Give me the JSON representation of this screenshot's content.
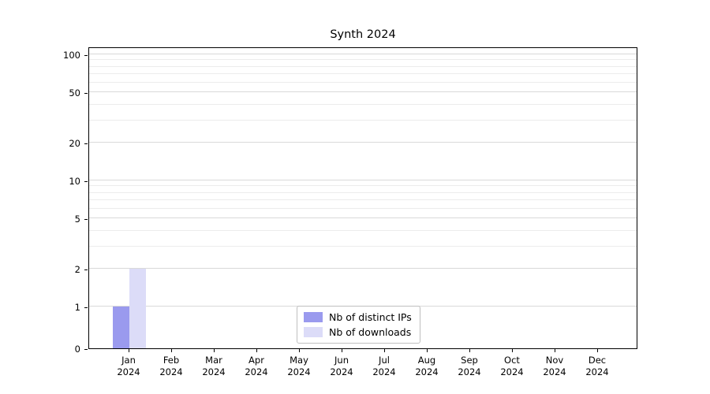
{
  "chart_data": {
    "type": "bar",
    "title": "Synth 2024",
    "yscale": "symlog",
    "grid": true,
    "legend_position": "lower center",
    "ylim": [
      0,
      120
    ],
    "yticks": [
      0,
      1,
      2,
      5,
      10,
      20,
      50,
      100
    ],
    "yticks_minor": [
      3,
      4,
      6,
      7,
      8,
      9,
      30,
      40,
      60,
      70,
      80,
      90
    ],
    "categories": [
      "Jan\n2024",
      "Feb\n2024",
      "Mar\n2024",
      "Apr\n2024",
      "May\n2024",
      "Jun\n2024",
      "Jul\n2024",
      "Aug\n2024",
      "Sep\n2024",
      "Oct\n2024",
      "Nov\n2024",
      "Dec\n2024"
    ],
    "series": [
      {
        "name": "Nb of distinct IPs",
        "color": "#9a9aee",
        "values": [
          1,
          0,
          0,
          0,
          0,
          0,
          0,
          0,
          0,
          0,
          0,
          0
        ]
      },
      {
        "name": "Nb of downloads",
        "color": "#dcdcf8",
        "values": [
          2,
          0,
          0,
          0,
          0,
          0,
          0,
          0,
          0,
          0,
          0,
          0
        ]
      }
    ]
  }
}
